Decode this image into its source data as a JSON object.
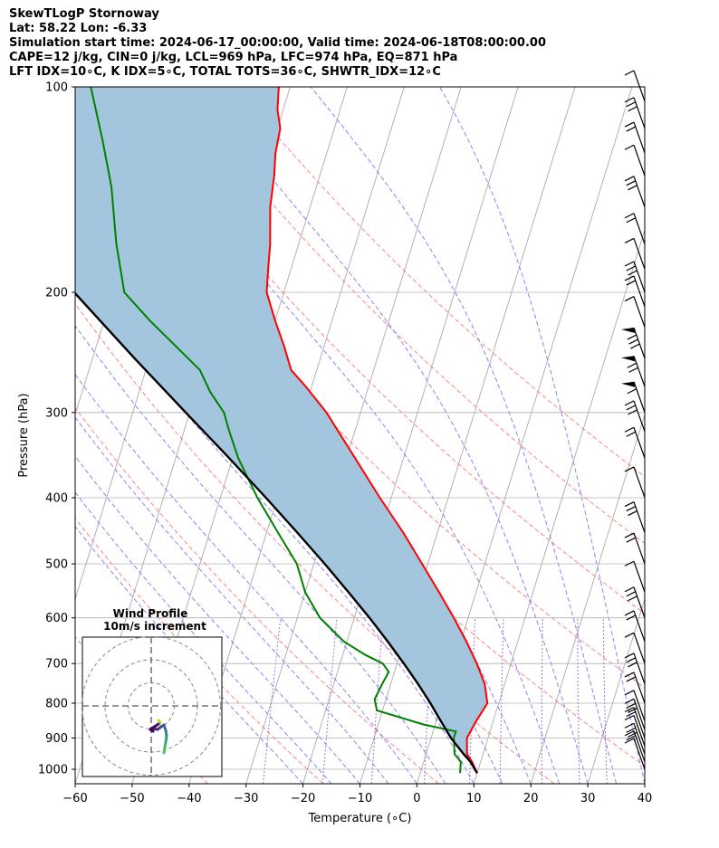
{
  "title": {
    "line1": "SkewTLogP Stornoway",
    "line2": "Lat: 58.22   Lon: -6.33",
    "line3": "Simulation start time: 2024-06-17_00:00:00, Valid time: 2024-06-18T08:00:00.00",
    "line4": "CAPE=12 j/kg, CIN=0 j/kg, LCL=969 hPa, LFC=974 hPa, EQ=871 hPa",
    "line5": "LFT IDX=10∘C, K IDX=5∘C, TOTAL TOTS=36∘C, SHWTR_IDX=12∘C"
  },
  "chart_data": {
    "type": "line",
    "subtype": "skew-t log-p",
    "xlabel": "Temperature (∘C)",
    "ylabel": "Pressure (hPa)",
    "xlim": [
      -60,
      40
    ],
    "ylim": [
      1050,
      100
    ],
    "yscale": "log",
    "x_ticks": [
      -60,
      -50,
      -40,
      -30,
      -20,
      -10,
      0,
      10,
      20,
      30,
      40
    ],
    "x_tick_labels": [
      "−60",
      "−50",
      "−40",
      "−30",
      "−20",
      "−10",
      "0",
      "10",
      "20",
      "30",
      "40"
    ],
    "y_ticks": [
      1000,
      900,
      800,
      700,
      600,
      500,
      400,
      300,
      200,
      100
    ],
    "y_tick_labels": [
      "1000",
      "900",
      "800",
      "700",
      "600",
      "500",
      "400",
      "300",
      "200",
      "100"
    ],
    "grid": true,
    "colors": {
      "temperature": "#ff0000",
      "dewpoint": "#008000",
      "parcel": "#000000",
      "cape_fill": "#a3c6de",
      "dry_adiabat": "#ff6666",
      "moist_adiabat": "#6666ff",
      "mixing_ratio": "#9966cc",
      "isotherm": "#aaaaaa"
    },
    "series": [
      {
        "key": "temperature",
        "points": [
          [
            1013,
            10
          ],
          [
            975,
            8.5
          ],
          [
            950,
            7.2
          ],
          [
            900,
            6.3
          ],
          [
            850,
            7.0
          ],
          [
            800,
            8.0
          ],
          [
            750,
            6.5
          ],
          [
            700,
            4.0
          ],
          [
            650,
            1.0
          ],
          [
            600,
            -2.5
          ],
          [
            550,
            -6.5
          ],
          [
            500,
            -11.0
          ],
          [
            450,
            -16.0
          ],
          [
            400,
            -22.0
          ],
          [
            350,
            -28.5
          ],
          [
            300,
            -36.0
          ],
          [
            275,
            -41.0
          ],
          [
            260,
            -44.5
          ],
          [
            240,
            -47.0
          ],
          [
            220,
            -50.0
          ],
          [
            200,
            -53.0
          ],
          [
            185,
            -54.0
          ],
          [
            170,
            -55.0
          ],
          [
            150,
            -57.0
          ],
          [
            135,
            -58.0
          ],
          [
            125,
            -59.0
          ],
          [
            115,
            -59.5
          ],
          [
            108,
            -61.0
          ],
          [
            100,
            -62.0
          ]
        ]
      },
      {
        "key": "dewpoint",
        "points": [
          [
            1013,
            7
          ],
          [
            975,
            6.5
          ],
          [
            950,
            5.0
          ],
          [
            900,
            4.0
          ],
          [
            880,
            4.0
          ],
          [
            860,
            -2.0
          ],
          [
            820,
            -11.0
          ],
          [
            790,
            -12.0
          ],
          [
            750,
            -11.5
          ],
          [
            720,
            -11.0
          ],
          [
            700,
            -12.5
          ],
          [
            680,
            -16.0
          ],
          [
            650,
            -20.5
          ],
          [
            600,
            -26.0
          ],
          [
            550,
            -30.0
          ],
          [
            500,
            -33.0
          ],
          [
            450,
            -38.0
          ],
          [
            400,
            -43.5
          ],
          [
            350,
            -49.0
          ],
          [
            320,
            -52.0
          ],
          [
            300,
            -54.0
          ],
          [
            280,
            -57.5
          ],
          [
            260,
            -60.5
          ],
          [
            240,
            -66.0
          ],
          [
            220,
            -72.0
          ],
          [
            200,
            -78.0
          ],
          [
            170,
            -82.0
          ],
          [
            140,
            -86.0
          ],
          [
            120,
            -90.0
          ],
          [
            100,
            -95.0
          ]
        ]
      },
      {
        "key": "parcel",
        "points": [
          [
            1013,
            10
          ],
          [
            975,
            8.2
          ],
          [
            950,
            6.6
          ],
          [
            900,
            3.5
          ],
          [
            850,
            0.8
          ],
          [
            800,
            -2.0
          ],
          [
            750,
            -5.2
          ],
          [
            700,
            -8.8
          ],
          [
            650,
            -12.8
          ],
          [
            600,
            -17.3
          ],
          [
            550,
            -22.4
          ],
          [
            500,
            -28.1
          ],
          [
            450,
            -34.6
          ],
          [
            400,
            -42.0
          ],
          [
            350,
            -50.6
          ],
          [
            300,
            -60.7
          ],
          [
            250,
            -72.6
          ],
          [
            200,
            -86.8
          ],
          [
            150,
            -104.0
          ],
          [
            100,
            -127.0
          ]
        ]
      }
    ],
    "wind_barbs_present": true,
    "inset": {
      "type": "hodograph",
      "title_line1": "Wind Profile",
      "title_line2": "10m/s increment",
      "rings_ms": [
        10,
        20,
        30
      ],
      "colormap": "viridis"
    }
  }
}
